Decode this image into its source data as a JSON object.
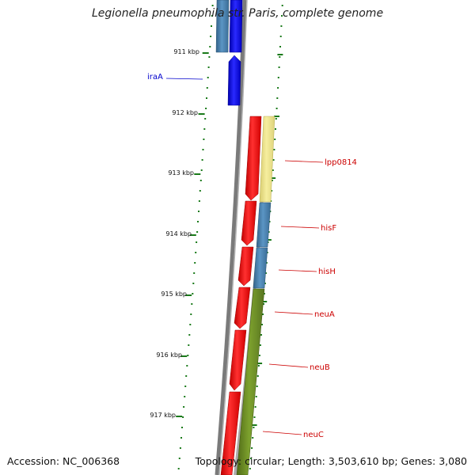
{
  "title": "Legionella pneumophila str. Paris, complete genome",
  "footer": {
    "accession": "Accession: NC_006368",
    "summary": "Topology: circular; Length: 3,503,610 bp; Genes: 3,080"
  },
  "colors": {
    "backbone": "#7a7a7a",
    "ticks": "#1a7a1a",
    "blue_gene": "#0000ff",
    "steel_gene": "#4682b4",
    "red_gene": "#ff0000",
    "khaki_gene": "#f0e68c",
    "olive_gene": "#6b8e23",
    "label_red": "#cc0000",
    "label_blue": "#0000cc"
  },
  "scale_ticks": [
    {
      "label": "911 kbp",
      "pos_kbp": 911
    },
    {
      "label": "912 kbp",
      "pos_kbp": 912
    },
    {
      "label": "913 kbp",
      "pos_kbp": 913
    },
    {
      "label": "914 kbp",
      "pos_kbp": 914
    },
    {
      "label": "915 kbp",
      "pos_kbp": 915
    },
    {
      "label": "916 kbp",
      "pos_kbp": 916
    },
    {
      "label": "917 kbp",
      "pos_kbp": 917
    }
  ],
  "gene_labels": [
    {
      "name": "iraA",
      "color": "#0000cc"
    },
    {
      "name": "lpp0814",
      "color": "#cc0000"
    },
    {
      "name": "hisF",
      "color": "#cc0000"
    },
    {
      "name": "hisH",
      "color": "#cc0000"
    },
    {
      "name": "neuA",
      "color": "#cc0000"
    },
    {
      "name": "neuB",
      "color": "#cc0000"
    },
    {
      "name": "neuC",
      "color": "#cc0000"
    }
  ]
}
